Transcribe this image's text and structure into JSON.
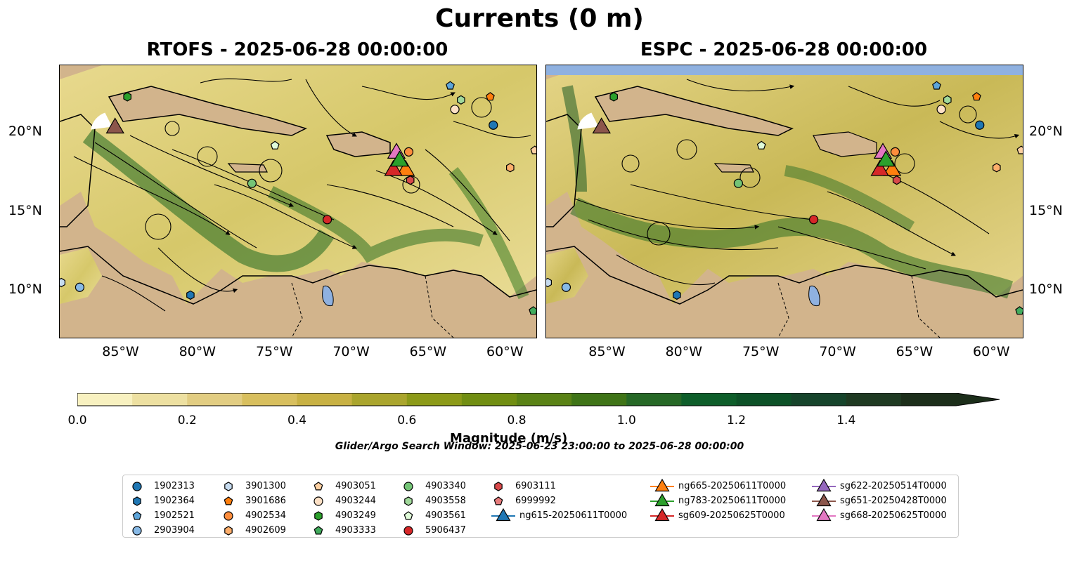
{
  "title": "Currents (0 m)",
  "panels": [
    {
      "title": "RTOFS - 2025-06-28 00:00:00"
    },
    {
      "title": "ESPC - 2025-06-28 00:00:00"
    }
  ],
  "axes": {
    "x_ticks": [
      "85°W",
      "80°W",
      "75°W",
      "70°W",
      "65°W",
      "60°W"
    ],
    "y_ticks": [
      "20°N",
      "15°N",
      "10°N"
    ],
    "lon_range": [
      -89,
      -58
    ],
    "lat_range": [
      7,
      24.3
    ]
  },
  "colorbar": {
    "label": "Magnitude (m/s)",
    "ticks": [
      "0.0",
      "0.2",
      "0.4",
      "0.6",
      "0.8",
      "1.0",
      "1.2",
      "1.4"
    ],
    "range": [
      0,
      1.6
    ],
    "colors": [
      "#f8f1c0",
      "#ede0a1",
      "#e2cd82",
      "#d8bf5e",
      "#c8b143",
      "#aaa52d",
      "#8c9a18",
      "#718e12",
      "#5a8215",
      "#3f7417",
      "#266826",
      "#0e5e2a",
      "#0d5127",
      "#16442b",
      "#1f3a22",
      "#1c2e1a"
    ],
    "extend": "max"
  },
  "search_window": "Glider/Argo Search Window: 2025-06-23 23:00:00 to 2025-06-28 00:00:00",
  "legend": [
    {
      "label": "1902313",
      "marker": "circle",
      "color": "#1f77b4"
    },
    {
      "label": "1902364",
      "marker": "hexagon",
      "color": "#1f77b4"
    },
    {
      "label": "1902521",
      "marker": "pentagon",
      "color": "#5da5da"
    },
    {
      "label": "2903904",
      "marker": "circle",
      "color": "#87b9e6"
    },
    {
      "label": "3901300",
      "marker": "hexagon",
      "color": "#c6dbef"
    },
    {
      "label": "3901686",
      "marker": "pentagon",
      "color": "#ff7f0e"
    },
    {
      "label": "4902534",
      "marker": "circle",
      "color": "#fd8d3c"
    },
    {
      "label": "4902609",
      "marker": "hexagon",
      "color": "#fdae6b"
    },
    {
      "label": "4903051",
      "marker": "pentagon",
      "color": "#fdd0a2"
    },
    {
      "label": "4903244",
      "marker": "circle",
      "color": "#fde0c5"
    },
    {
      "label": "4903249",
      "marker": "hexagon",
      "color": "#2ca02c"
    },
    {
      "label": "4903333",
      "marker": "pentagon",
      "color": "#41ab5d"
    },
    {
      "label": "4903340",
      "marker": "circle",
      "color": "#74c476"
    },
    {
      "label": "4903558",
      "marker": "hexagon",
      "color": "#a1d99b"
    },
    {
      "label": "4903561",
      "marker": "pentagon",
      "color": "#e0fbd9"
    },
    {
      "label": "5906437",
      "marker": "circle",
      "color": "#d62728"
    },
    {
      "label": "6903111",
      "marker": "hexagon",
      "color": "#d9494a"
    },
    {
      "label": "6999992",
      "marker": "pentagon",
      "color": "#e77c7c"
    },
    {
      "label": "ng615-20250611T0000",
      "marker": "triangle",
      "color": "#1f77b4"
    },
    {
      "label": "ng665-20250611T0000",
      "marker": "triangle",
      "color": "#ff7f0e"
    },
    {
      "label": "ng783-20250611T0000",
      "marker": "triangle",
      "color": "#2ca02c"
    },
    {
      "label": "sg609-20250625T0000",
      "marker": "triangle",
      "color": "#d62728"
    },
    {
      "label": "sg622-20250514T0000",
      "marker": "triangle",
      "color": "#9467bd"
    },
    {
      "label": "sg651-20250428T0000",
      "marker": "triangle",
      "color": "#8c564b"
    },
    {
      "label": "sg668-20250625T0000",
      "marker": "triangle",
      "color": "#e377c2"
    }
  ],
  "land_color": "#d2b48c",
  "lake_color": "#8fb1e0"
}
